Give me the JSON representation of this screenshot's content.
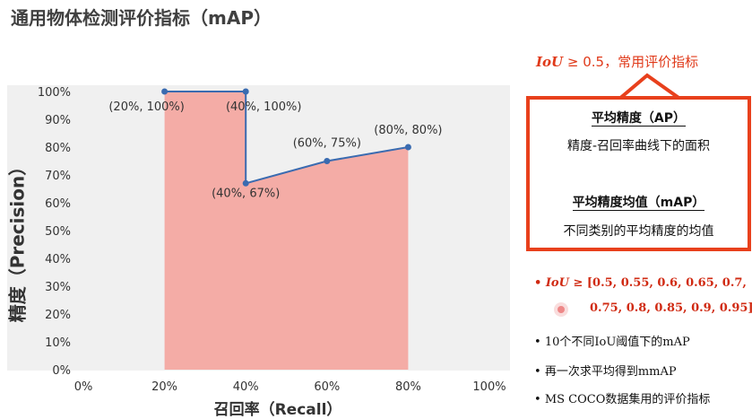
{
  "header": {
    "title": "通用物体检测评价指标（mAP）"
  },
  "chart_data": {
    "type": "area",
    "xlabel": "召回率（Recall）",
    "ylabel": "精度（Precision）",
    "xlim": [
      0,
      100
    ],
    "ylim": [
      0,
      100
    ],
    "x_ticks": [
      "0%",
      "20%",
      "40%",
      "60%",
      "80%",
      "100%"
    ],
    "y_ticks": [
      "0%",
      "10%",
      "20%",
      "30%",
      "40%",
      "50%",
      "60%",
      "70%",
      "80%",
      "90%",
      "100%"
    ],
    "grid": false,
    "series": [
      {
        "x": [
          20,
          40,
          40,
          60,
          80
        ],
        "y": [
          100,
          100,
          67,
          75,
          80
        ]
      }
    ],
    "point_labels": [
      "(20%, 100%)",
      "(40%, 100%)",
      "(40%, 67%)",
      "(60%, 75%)",
      "(80%, 80%)"
    ],
    "colors": {
      "fill": "#f4aca6",
      "line": "#3a6bb0",
      "point": "#3a6bb0",
      "background": "#f0f0f0"
    }
  },
  "callout": {
    "iou_symbol": "IoU",
    "iou_condition": " ≥ 0.5，",
    "iou_text": "常用评价指标",
    "ap_title": "平均精度（AP）",
    "ap_desc": "精度-召回率曲线下的面积",
    "map_title": "平均精度均值（mAP）",
    "map_desc": "不同类别的平均精度的均值",
    "color": "#e8401c"
  },
  "bullets": {
    "b1_symbol": "IoU",
    "b1_text": " ≥ [0.5, 0.55, 0.6, 0.65, 0.7,",
    "b1_cont": "0.75, 0.8, 0.85, 0.9, 0.95]",
    "b2": "10个不同IoU阈值下的mAP",
    "b3": "再一次求平均得到mmAP",
    "b4": "MS COCO数据集用的评价指标"
  }
}
